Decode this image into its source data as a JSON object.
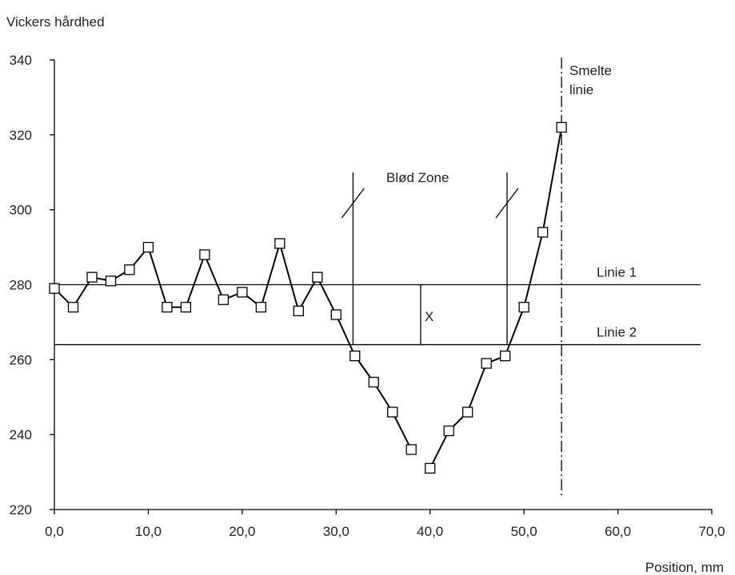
{
  "chart_data": {
    "type": "line",
    "ylabel": "Vickers hårdhed",
    "xlabel": "Position, mm",
    "xlim": [
      0,
      70
    ],
    "ylim": [
      220,
      340
    ],
    "x_ticks": [
      0,
      10,
      20,
      30,
      40,
      50,
      60,
      70
    ],
    "x_tick_labels": [
      "0,0",
      "10,0",
      "20,0",
      "30,0",
      "40,0",
      "50,0",
      "60,0",
      "70,0"
    ],
    "y_ticks": [
      220,
      240,
      260,
      280,
      300,
      320,
      340
    ],
    "y_tick_labels": [
      "220",
      "240",
      "260",
      "280",
      "300",
      "320",
      "340"
    ],
    "grid": false,
    "series": [
      {
        "marker": "square",
        "color": "#000000",
        "points": [
          [
            0,
            279
          ],
          [
            2,
            274
          ],
          [
            4,
            282
          ],
          [
            6,
            281
          ],
          [
            8,
            284
          ],
          [
            10,
            290
          ],
          [
            12,
            274
          ],
          [
            14,
            274
          ],
          [
            16,
            288
          ],
          [
            18,
            276
          ],
          [
            20,
            278
          ],
          [
            22,
            274
          ],
          [
            24,
            291
          ],
          [
            26,
            273
          ],
          [
            28,
            282
          ],
          [
            30,
            272
          ],
          [
            32,
            261
          ],
          [
            34,
            254
          ],
          [
            36,
            246
          ],
          [
            38,
            236
          ]
        ]
      },
      {
        "marker": "square",
        "color": "#000000",
        "points": [
          [
            40,
            231
          ],
          [
            42,
            241
          ],
          [
            44,
            246
          ],
          [
            46,
            259
          ],
          [
            48,
            261
          ],
          [
            50,
            274
          ],
          [
            52,
            294
          ],
          [
            54,
            322
          ]
        ]
      }
    ],
    "reference_lines": [
      {
        "label": "Linie 1",
        "y": 280
      },
      {
        "label": "Linie 2",
        "y": 264
      }
    ],
    "zone_markers": [
      {
        "x": 31.8,
        "y_top": 310,
        "y_bottom": 264
      },
      {
        "x": 48.2,
        "y_top": 310,
        "y_bottom": 264
      }
    ],
    "zone_label": "Blød Zone",
    "difference_marker": {
      "x": 39,
      "y_from": 280,
      "y_to": 264,
      "label": "X"
    },
    "fusion_line": {
      "x": 54,
      "label_lines": [
        "Smelte",
        "linie"
      ]
    }
  }
}
